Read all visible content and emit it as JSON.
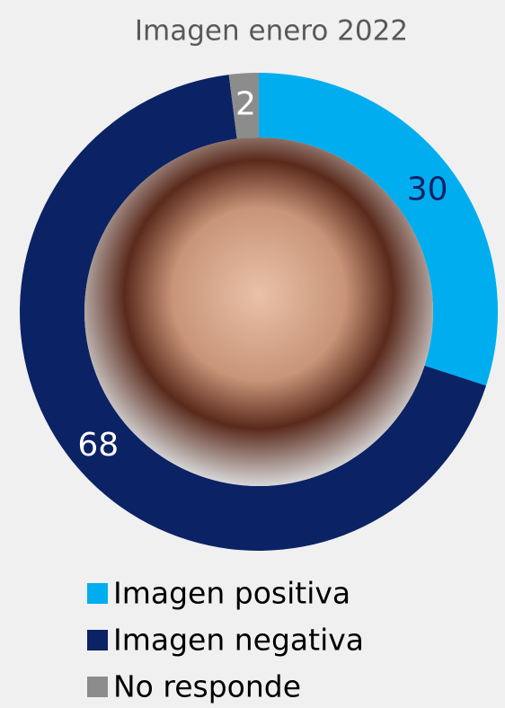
{
  "chart_data": {
    "type": "donut",
    "title": "Imagen enero 2022",
    "categories": [
      "Imagen positiva",
      "Imagen negativa",
      "No responde"
    ],
    "values": [
      30,
      68,
      2
    ],
    "colors": [
      "#00aeef",
      "#0b2265",
      "#8c8c8c"
    ]
  }
}
